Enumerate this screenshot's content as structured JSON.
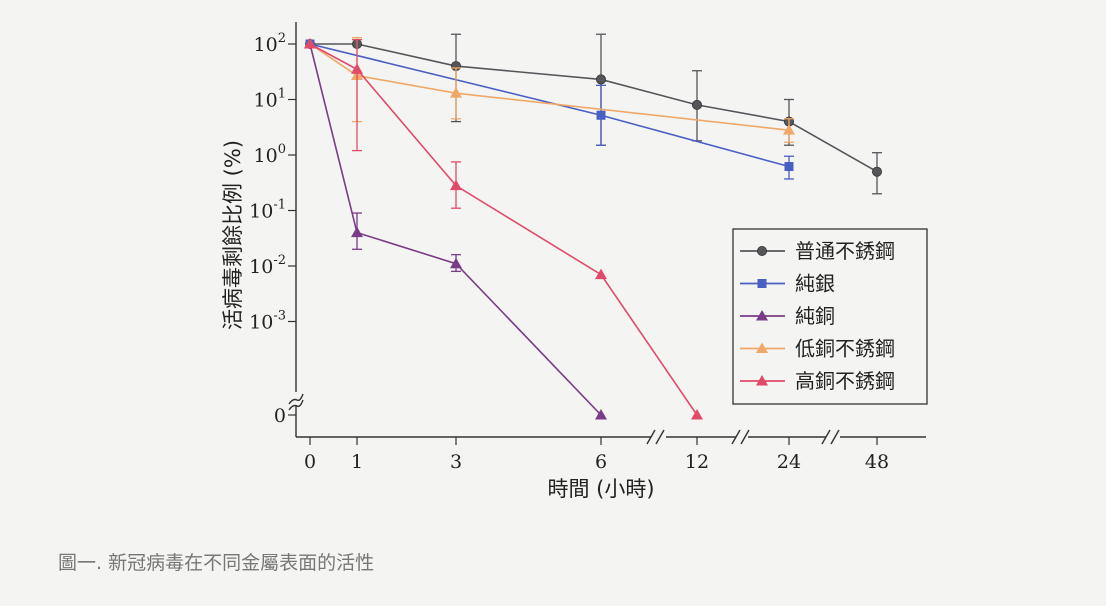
{
  "caption": "圖一. 新冠病毒在不同金屬表面的活性",
  "chart_data": {
    "type": "line",
    "xlabel": "時間 (小時)",
    "ylabel": "活病毒剩餘比例 (%)",
    "yscale": "log",
    "x_ticks": [
      "0",
      "1",
      "3",
      "6",
      "12",
      "24",
      "48"
    ],
    "y_ticks": [
      {
        "base": "10",
        "exp": "2"
      },
      {
        "base": "10",
        "exp": "1"
      },
      {
        "base": "10",
        "exp": "0"
      },
      {
        "base": "10",
        "exp": "-1"
      },
      {
        "base": "10",
        "exp": "-2"
      },
      {
        "base": "10",
        "exp": "-3"
      },
      {
        "base": "0",
        "exp": ""
      }
    ],
    "legend_position": "right",
    "series": [
      {
        "name": "普通不銹鋼",
        "color": "#55565a",
        "marker": "circle",
        "points": [
          {
            "x": "0",
            "y": 100
          },
          {
            "x": "1",
            "y": 100
          },
          {
            "x": "3",
            "y": 40,
            "err": [
              4,
              150
            ]
          },
          {
            "x": "6",
            "y": 23,
            "err": [
              1.5,
              150
            ]
          },
          {
            "x": "12",
            "y": 8,
            "err": [
              1.8,
              33
            ]
          },
          {
            "x": "24",
            "y": 4,
            "err": [
              1.5,
              10
            ]
          },
          {
            "x": "48",
            "y": 0.5,
            "err": [
              0.2,
              1.1
            ]
          }
        ]
      },
      {
        "name": "純銀",
        "color": "#4a5fc4",
        "marker": "square",
        "points": [
          {
            "x": "0",
            "y": 100
          },
          {
            "x": "6",
            "y": 5.2,
            "err": [
              1.5,
              18
            ]
          },
          {
            "x": "24",
            "y": 0.62,
            "err": [
              0.37,
              0.95
            ]
          }
        ]
      },
      {
        "name": "純銅",
        "color": "#7a3c86",
        "marker": "triangle",
        "points": [
          {
            "x": "0",
            "y": 100
          },
          {
            "x": "1",
            "y": 0.04,
            "err": [
              0.02,
              0.09
            ]
          },
          {
            "x": "3",
            "y": 0.011,
            "err": [
              0.008,
              0.016
            ]
          },
          {
            "x": "6",
            "y": 0
          }
        ]
      },
      {
        "name": "低銅不銹鋼",
        "color": "#f0a868",
        "marker": "triangle",
        "points": [
          {
            "x": "0",
            "y": 100
          },
          {
            "x": "1",
            "y": 27,
            "err": [
              4,
              130
            ]
          },
          {
            "x": "3",
            "y": 13,
            "err": [
              4.5,
              37
            ]
          },
          {
            "x": "24",
            "y": 2.8,
            "err": [
              1.7,
              4.5
            ]
          }
        ]
      },
      {
        "name": "高銅不銹鋼",
        "color": "#e24a6a",
        "marker": "triangle",
        "points": [
          {
            "x": "0",
            "y": 100
          },
          {
            "x": "1",
            "y": 35,
            "err": [
              1.2,
              120
            ]
          },
          {
            "x": "3",
            "y": 0.28,
            "err": [
              0.11,
              0.75
            ]
          },
          {
            "x": "6",
            "y": 0.007
          },
          {
            "x": "12",
            "y": 0
          }
        ]
      }
    ]
  }
}
